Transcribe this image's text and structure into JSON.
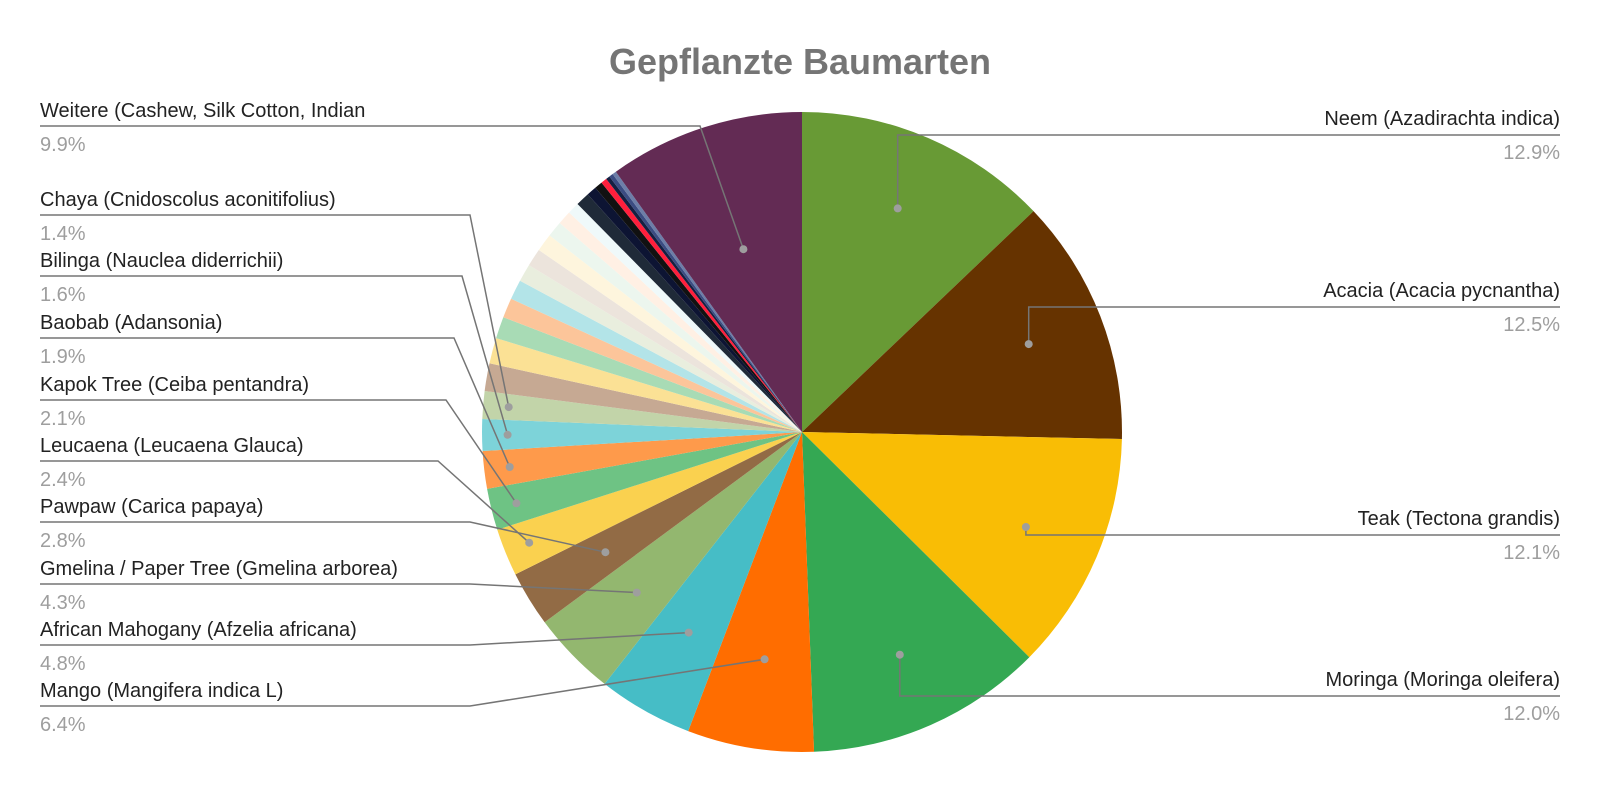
{
  "chart_data": {
    "type": "pie",
    "title": "Gepflanzte Baumarten",
    "slices": [
      {
        "label": "Neem (Azadirachta indica)",
        "pct_label": "12.9%",
        "value": 12.9,
        "color": "#689a35"
      },
      {
        "label": "Acacia (Acacia pycnantha)",
        "pct_label": "12.5%",
        "value": 12.5,
        "color": "#663300"
      },
      {
        "label": "Teak (Tectona grandis)",
        "pct_label": "12.1%",
        "value": 12.1,
        "color": "#f9bd05"
      },
      {
        "label": "Moringa (Moringa oleifera)",
        "pct_label": "12.0%",
        "value": 12.0,
        "color": "#34a853"
      },
      {
        "label": "Mango (Mangifera indica L)",
        "pct_label": "6.4%",
        "value": 6.4,
        "color": "#ff6d00"
      },
      {
        "label": "African Mahogany (Afzelia africana)",
        "pct_label": "4.8%",
        "value": 4.8,
        "color": "#46bdc6"
      },
      {
        "label": "Gmelina / Paper Tree (Gmelina arborea)",
        "pct_label": "4.3%",
        "value": 4.3,
        "color": "#93b76f"
      },
      {
        "label": "Pawpaw (Carica papaya)",
        "pct_label": "2.8%",
        "value": 2.8,
        "color": "#926b45"
      },
      {
        "label": "Leucaena (Leucaena Glauca)",
        "pct_label": "2.4%",
        "value": 2.4,
        "color": "#fad14f"
      },
      {
        "label": "Kapok Tree (Ceiba pentandra)",
        "pct_label": "2.1%",
        "value": 2.1,
        "color": "#6ec384"
      },
      {
        "label": "Baobab (Adansonia)",
        "pct_label": "1.9%",
        "value": 1.9,
        "color": "#fe9a4b"
      },
      {
        "label": "Bilinga (Nauclea diderrichii)",
        "pct_label": "1.6%",
        "value": 1.6,
        "color": "#7dd3d9"
      },
      {
        "label": "Chaya (Cnidoscolus aconitifolius)",
        "pct_label": "1.4%",
        "value": 1.4,
        "color": "#c2d4a9"
      },
      {
        "value": 1.4,
        "color": "#c6a993"
      },
      {
        "value": 1.3,
        "color": "#fbe195"
      },
      {
        "value": 1.1,
        "color": "#a8dbb5"
      },
      {
        "value": 1.0,
        "color": "#fcc59a"
      },
      {
        "value": 1.0,
        "color": "#b3e4e8"
      },
      {
        "value": 0.9,
        "color": "#e9eede"
      },
      {
        "value": 0.9,
        "color": "#ece4dc"
      },
      {
        "value": 0.9,
        "color": "#fef5dd"
      },
      {
        "value": 0.8,
        "color": "#ecf6ee"
      },
      {
        "value": 0.7,
        "color": "#fff0e4"
      },
      {
        "value": 0.6,
        "color": "#eff9fa"
      },
      {
        "value": 0.7,
        "color": "#1f2a38"
      },
      {
        "value": 0.5,
        "color": "#0d1433"
      },
      {
        "value": 0.4,
        "color": "#111111"
      },
      {
        "value": 0.3,
        "color": "#ff1f3c"
      },
      {
        "value": 0.2,
        "color": "#152042"
      },
      {
        "value": 0.2,
        "color": "#3b4c82"
      },
      {
        "value": 0.2,
        "color": "#6d7ea8"
      },
      {
        "label": "Weitere (Cashew, Silk Cotton, Indian",
        "pct_label": "9.9%",
        "value": 9.9,
        "color": "#632b54"
      }
    ]
  }
}
